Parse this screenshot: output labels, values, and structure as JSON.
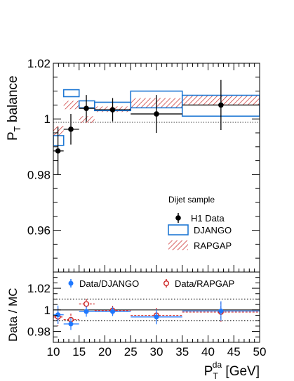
{
  "colors": {
    "data": "#000000",
    "django": "#1f78d4",
    "rapgap": "#cc3333",
    "ratio_django": "#1f78ff",
    "ratio_rapgap": "#cc2222"
  },
  "chart_data": [
    {
      "type": "scatter",
      "ylabel_main": "P",
      "ylabel_sub": "T",
      "ylabel_rest": " balance",
      "ylim": [
        0.945,
        1.02
      ],
      "yticks": [
        0.96,
        0.98,
        1,
        1.02
      ],
      "ytick_labels": [
        "0.96",
        "0.98",
        "1",
        "1.02"
      ],
      "reference_line": 1,
      "legend_position": "bottom-right",
      "legend_title": "Dijet sample",
      "legend_entries": [
        "H1 Data",
        "DJANGO",
        "RAPGAP"
      ],
      "bins": [
        [
          10,
          12
        ],
        [
          12,
          15
        ],
        [
          15,
          18
        ],
        [
          18,
          25
        ],
        [
          25,
          35
        ],
        [
          35,
          50
        ]
      ],
      "series": [
        {
          "name": "H1 Data",
          "x": [
            10.9,
            13.4,
            16.4,
            21.5,
            30.0,
            42.5
          ],
          "y": [
            0.9885,
            0.9963,
            1.0038,
            1.0033,
            1.0018,
            1.005
          ],
          "yerr": [
            0.0085,
            0.0055,
            0.0048,
            0.0042,
            0.0068,
            0.009
          ]
        },
        {
          "name": "DJANGO",
          "lo": [
            0.9905,
            1.008,
            1.004,
            1.003,
            1.004,
            1.001
          ],
          "hi": [
            0.994,
            1.0105,
            1.0065,
            1.006,
            1.01,
            1.0085
          ]
        },
        {
          "name": "RAPGAP",
          "lo": [
            0.994,
            1.0035,
            0.9985,
            1.0025,
            1.004,
            1.005
          ],
          "hi": [
            0.9975,
            1.0065,
            1.001,
            1.0045,
            1.0075,
            1.0085
          ]
        }
      ]
    },
    {
      "type": "scatter",
      "ylabel": "Data / MC",
      "xlabel_main": "P",
      "xlabel_sub": "T",
      "xlabel_sup": "da",
      "xlabel_rest": " [GeV]",
      "xlim": [
        10,
        50
      ],
      "xticks": [
        10,
        15,
        20,
        25,
        30,
        35,
        40,
        45,
        50
      ],
      "xtick_labels": [
        "10",
        "15",
        "20",
        "25",
        "30",
        "35",
        "40",
        "45",
        "50"
      ],
      "ylim": [
        0.97,
        1.035
      ],
      "yticks": [
        0.98,
        1,
        1.02
      ],
      "ytick_labels": [
        "0.98",
        "1",
        "1.02"
      ],
      "dotted_lines": [
        0.99,
        1.01
      ],
      "reference_line": 1,
      "legend_position": "top",
      "legend_entries": [
        "Data/DJANGO",
        "Data/RAPGAP"
      ],
      "series": [
        {
          "name": "Data/DJANGO",
          "x": [
            10.9,
            13.4,
            16.4,
            21.5,
            30.0,
            42.5
          ],
          "y": [
            0.9955,
            0.987,
            0.9985,
            0.9985,
            0.9935,
            0.999
          ],
          "yerr": [
            0.0085,
            0.0055,
            0.0048,
            0.0042,
            0.0068,
            0.009
          ]
        },
        {
          "name": "Data/RAPGAP",
          "x": [
            10.9,
            13.4,
            16.4,
            21.5,
            30.0,
            42.5
          ],
          "y": [
            0.9935,
            0.991,
            1.0055,
            0.9995,
            0.995,
            0.998
          ],
          "yerr": [
            0.0085,
            0.0055,
            0.0048,
            0.0042,
            0.0068,
            0.009
          ]
        }
      ]
    }
  ]
}
